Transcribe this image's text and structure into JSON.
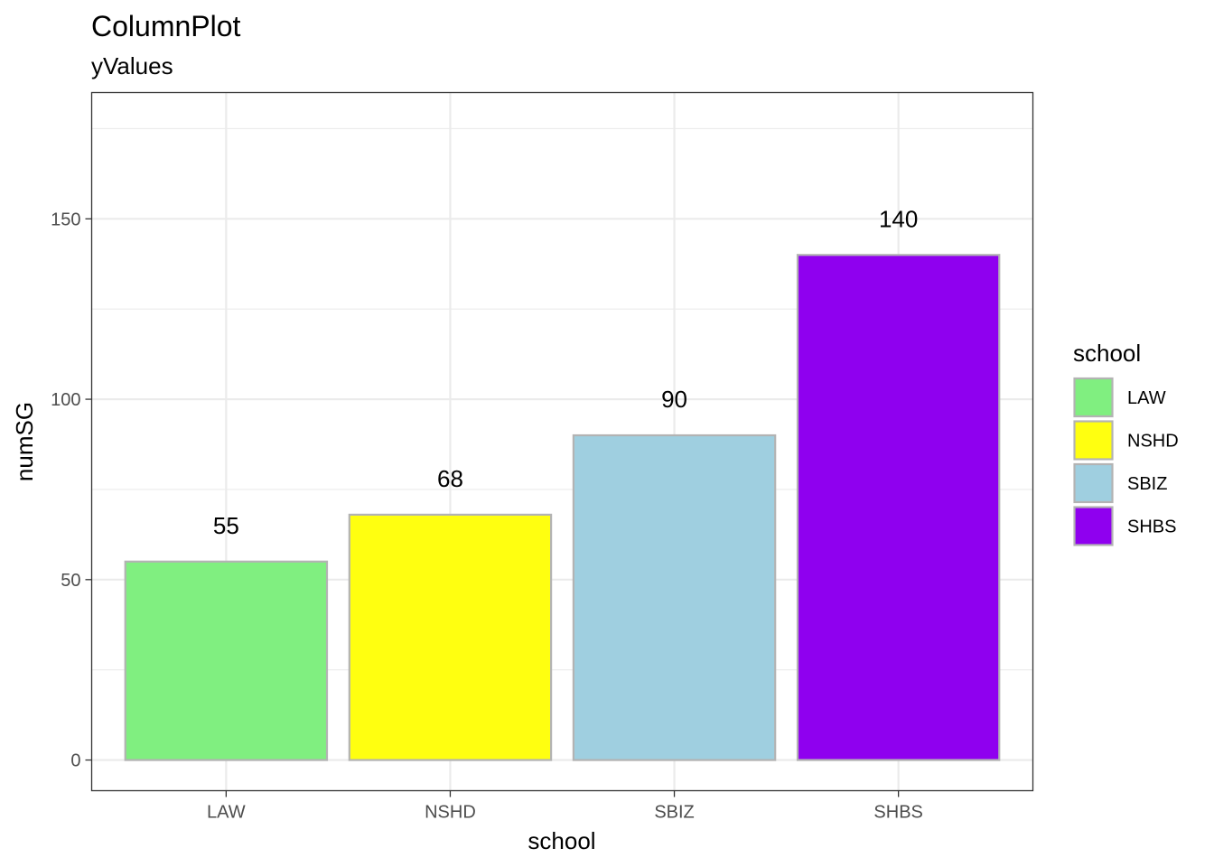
{
  "chart_data": {
    "type": "bar",
    "title": "ColumnPlot",
    "subtitle": "yValues",
    "xlabel": "school",
    "ylabel": "numSG",
    "categories": [
      "LAW",
      "NSHD",
      "SBIZ",
      "SHBS"
    ],
    "values": [
      55,
      68,
      90,
      140
    ],
    "data_labels": [
      "55",
      "68",
      "90",
      "140"
    ],
    "colors": [
      "#80EF80",
      "#FFFF10",
      "#9FCFE0",
      "#8F00EF"
    ],
    "bar_border_color": "#B3B3B3",
    "ylim": [
      -8.5,
      185
    ],
    "y_ticks": [
      0,
      50,
      100,
      150
    ],
    "y_tick_labels": [
      "0",
      "50",
      "100",
      "150"
    ],
    "grid": true,
    "legend": {
      "title": "school",
      "position": "right",
      "entries": [
        "LAW",
        "NSHD",
        "SBIZ",
        "SHBS"
      ]
    }
  }
}
